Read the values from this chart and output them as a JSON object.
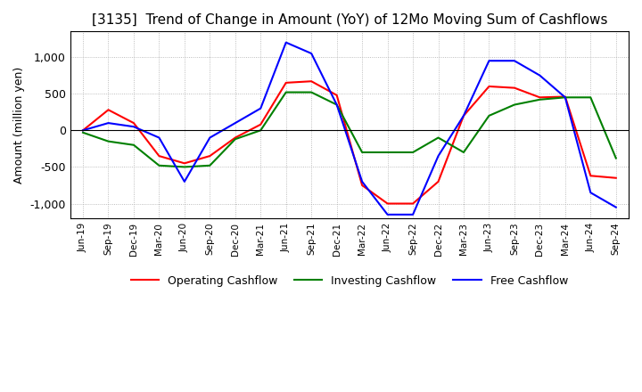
{
  "title": "[3135]  Trend of Change in Amount (YoY) of 12Mo Moving Sum of Cashflows",
  "ylabel": "Amount (million yen)",
  "ylim": [
    -1200,
    1350
  ],
  "yticks": [
    -1000,
    -500,
    0,
    500,
    1000
  ],
  "x_labels": [
    "Jun-19",
    "Sep-19",
    "Dec-19",
    "Mar-20",
    "Jun-20",
    "Sep-20",
    "Dec-20",
    "Mar-21",
    "Jun-21",
    "Sep-21",
    "Dec-21",
    "Mar-22",
    "Jun-22",
    "Sep-22",
    "Dec-22",
    "Mar-23",
    "Jun-23",
    "Sep-23",
    "Dec-23",
    "Mar-24",
    "Jun-24",
    "Sep-24"
  ],
  "operating": [
    0,
    280,
    100,
    -350,
    -450,
    -350,
    -100,
    80,
    650,
    670,
    480,
    -750,
    -1000,
    -1000,
    -700,
    200,
    600,
    580,
    450,
    460,
    -620,
    -650
  ],
  "investing": [
    -30,
    -150,
    -200,
    -480,
    -500,
    -480,
    -120,
    0,
    520,
    520,
    350,
    -300,
    -300,
    -300,
    -100,
    -300,
    200,
    350,
    420,
    450,
    450,
    -380
  ],
  "free": [
    0,
    100,
    50,
    -100,
    -700,
    -100,
    100,
    300,
    1200,
    1050,
    350,
    -700,
    -1150,
    -1150,
    -350,
    200,
    950,
    950,
    750,
    450,
    -850,
    -1050
  ],
  "operating_color": "#ff0000",
  "investing_color": "#008000",
  "free_color": "#0000ff",
  "background_color": "#ffffff",
  "grid_color": "#aaaaaa",
  "title_fontsize": 11,
  "legend_labels": [
    "Operating Cashflow",
    "Investing Cashflow",
    "Free Cashflow"
  ]
}
